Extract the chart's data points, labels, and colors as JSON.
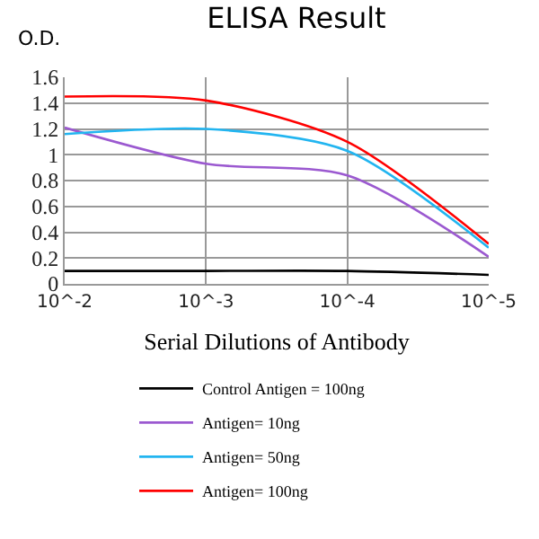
{
  "chart_data": {
    "type": "line",
    "title": "ELISA Result",
    "ylabel": "O.D.",
    "xlabel": "Serial Dilutions of Antibody",
    "categories": [
      "10^-2",
      "10^-3",
      "10^-4",
      "10^-5"
    ],
    "series": [
      {
        "name": "Control Antigen = 100ng",
        "color": "#000000",
        "values": [
          0.1,
          0.1,
          0.1,
          0.07
        ]
      },
      {
        "name": "Antigen= 10ng",
        "color": "#9b59d0",
        "values": [
          1.21,
          0.93,
          0.84,
          0.21
        ]
      },
      {
        "name": "Antigen= 50ng",
        "color": "#22b5f0",
        "values": [
          1.16,
          1.2,
          1.03,
          0.28
        ]
      },
      {
        "name": "Antigen= 100ng",
        "color": "#ff0000",
        "values": [
          1.45,
          1.42,
          1.1,
          0.31
        ]
      }
    ],
    "ylim": [
      0,
      1.6
    ],
    "yticks": [
      0,
      0.2,
      0.4,
      0.6,
      0.8,
      1,
      1.2,
      1.4,
      1.6
    ],
    "grid": true,
    "legend": "bottom",
    "marker": "none",
    "line_style": "solid"
  }
}
